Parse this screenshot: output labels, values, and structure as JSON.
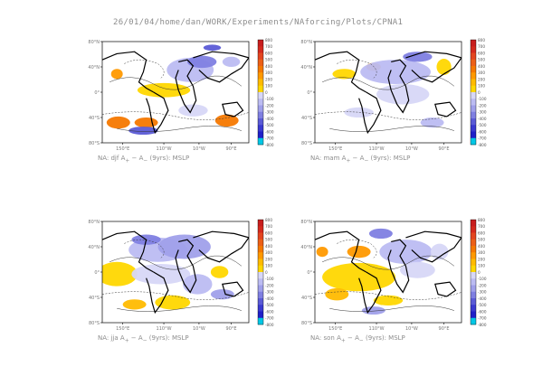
{
  "page": {
    "title": "26/01/04/home/dan/WORK/Experiments/NAforcing/Plots/CPNA1"
  },
  "colors": {
    "warm": [
      "#ffd700",
      "#ffbb00",
      "#ff9900",
      "#f57800",
      "#ec6017",
      "#e34520",
      "#d42a1e",
      "#c81e1e"
    ],
    "cool": [
      "#d7d7f7",
      "#bcbcf2",
      "#a0a0ea",
      "#7f7fe1",
      "#5b5bd6",
      "#3a3ad0",
      "#2020c8",
      "#00c8e6"
    ],
    "contour": "#000000",
    "frame": "#000000"
  },
  "chart_data": [
    {
      "type": "heatmap",
      "name": "djf",
      "caption": "NA: djf A+ − A− (9yrs): MSLP",
      "caption_parts": {
        "prefix": "NA: djf A",
        "plus": "+",
        "mid": " − A",
        "minus": "−",
        "suffix": " (9yrs): MSLP"
      },
      "y_ticks": [
        "80°N",
        "40°N",
        "0°",
        "40°S",
        "80°S"
      ],
      "x_ticks": [
        "150°E",
        "110°W",
        "10°W",
        "90°E"
      ],
      "colorbar_ticks": [
        "800",
        "700",
        "600",
        "500",
        "400",
        "300",
        "200",
        "100",
        "0",
        "-100",
        "-200",
        "-300",
        "-400",
        "-500",
        "-600",
        "-700",
        "-800"
      ],
      "ylim": [
        -80,
        80
      ],
      "zlim": [
        -800,
        800
      ]
    },
    {
      "type": "heatmap",
      "name": "mam",
      "caption": "NA: mam A+ − A− (9yrs): MSLP",
      "caption_parts": {
        "prefix": "NA: mam A",
        "plus": "+",
        "mid": " − A",
        "minus": "−",
        "suffix": " (9yrs): MSLP"
      },
      "y_ticks": [
        "80°N",
        "40°N",
        "0°",
        "40°S",
        "80°S"
      ],
      "x_ticks": [
        "150°E",
        "110°W",
        "10°W",
        "90°E"
      ],
      "colorbar_ticks": [
        "800",
        "700",
        "600",
        "500",
        "400",
        "300",
        "200",
        "100",
        "0",
        "-100",
        "-200",
        "-300",
        "-400",
        "-500",
        "-600",
        "-700",
        "-800"
      ],
      "ylim": [
        -80,
        80
      ],
      "zlim": [
        -800,
        800
      ]
    },
    {
      "type": "heatmap",
      "name": "jja",
      "caption": "NA: jja A+ − A− (9yrs): MSLP",
      "caption_parts": {
        "prefix": "NA: jja A",
        "plus": "+",
        "mid": " − A",
        "minus": "−",
        "suffix": " (9yrs): MSLP"
      },
      "y_ticks": [
        "80°N",
        "40°N",
        "0°",
        "40°S",
        "80°S"
      ],
      "x_ticks": [
        "150°E",
        "110°W",
        "10°W",
        "90°E"
      ],
      "colorbar_ticks": [
        "800",
        "700",
        "600",
        "500",
        "400",
        "300",
        "200",
        "100",
        "0",
        "-100",
        "-200",
        "-300",
        "-400",
        "-500",
        "-600",
        "-700",
        "-800"
      ],
      "ylim": [
        -80,
        80
      ],
      "zlim": [
        -800,
        800
      ]
    },
    {
      "type": "heatmap",
      "name": "son",
      "caption": "NA: son A+ − A− (9yrs): MSLP",
      "caption_parts": {
        "prefix": "NA: son A",
        "plus": "+",
        "mid": " − A",
        "minus": "−",
        "suffix": " (9yrs): MSLP"
      },
      "y_ticks": [
        "80°N",
        "40°N",
        "0°",
        "40°S",
        "80°S"
      ],
      "x_ticks": [
        "150°E",
        "110°W",
        "10°W",
        "90°E"
      ],
      "colorbar_ticks": [
        "800",
        "700",
        "600",
        "500",
        "400",
        "300",
        "200",
        "100",
        "0",
        "-100",
        "-200",
        "-300",
        "-400",
        "-500",
        "-600",
        "-700",
        "-800"
      ],
      "ylim": [
        -80,
        80
      ],
      "zlim": [
        -800,
        800
      ]
    }
  ]
}
